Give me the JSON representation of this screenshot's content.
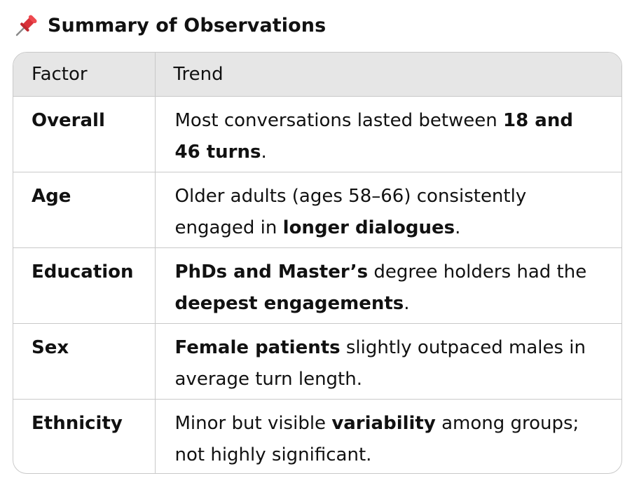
{
  "heading": {
    "icon": "pushpin-icon",
    "title": "Summary of Observations"
  },
  "table": {
    "headers": [
      "Factor",
      "Trend"
    ],
    "rows": [
      {
        "factor": "Overall",
        "trend": [
          {
            "text": "Most conversations lasted between ",
            "bold": false
          },
          {
            "text": "18 and 46 turns",
            "bold": true
          },
          {
            "text": ".",
            "bold": false
          }
        ]
      },
      {
        "factor": "Age",
        "trend": [
          {
            "text": "Older adults (ages 58–66) consistently engaged in ",
            "bold": false
          },
          {
            "text": "longer dialogues",
            "bold": true
          },
          {
            "text": ".",
            "bold": false
          }
        ]
      },
      {
        "factor": "Education",
        "trend": [
          {
            "text": "PhDs and Master’s",
            "bold": true
          },
          {
            "text": " degree holders had the ",
            "bold": false
          },
          {
            "text": "deepest engagements",
            "bold": true
          },
          {
            "text": ".",
            "bold": false
          }
        ]
      },
      {
        "factor": "Sex",
        "trend": [
          {
            "text": "Female patients",
            "bold": true
          },
          {
            "text": " slightly outpaced males in average turn length.",
            "bold": false
          }
        ]
      },
      {
        "factor": "Ethnicity",
        "trend": [
          {
            "text": "Minor but visible ",
            "bold": false
          },
          {
            "text": "variability",
            "bold": true
          },
          {
            "text": " among groups; not highly significant.",
            "bold": false
          }
        ]
      }
    ]
  },
  "colors": {
    "header_bg": "#e6e6e6",
    "border": "#c9c9c9",
    "pin_red": "#e0383e"
  }
}
